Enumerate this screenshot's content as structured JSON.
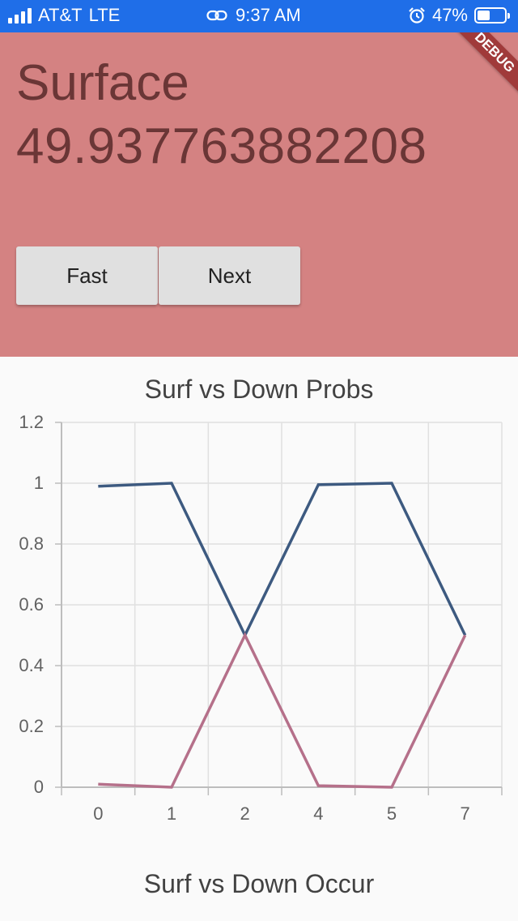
{
  "status_bar": {
    "carrier": "AT&T",
    "network": "LTE",
    "time": "9:37 AM",
    "battery_percent": "47%",
    "battery_level": 0.47,
    "icons": [
      "signal-icon",
      "link-icon",
      "alarm-icon",
      "battery-icon"
    ]
  },
  "header": {
    "title": "Surface",
    "value": "49.937763882208",
    "background_color": "#d48282",
    "text_color": "#6a3636"
  },
  "buttons": {
    "fast_label": "Fast",
    "next_label": "Next"
  },
  "debug_banner": "DEBUG",
  "charts": {
    "first_title": "Surf vs Down Probs",
    "second_title": "Surf vs Down Occur"
  },
  "chart_data": {
    "type": "line",
    "title": "Surf vs Down Probs",
    "categories": [
      "0",
      "1",
      "2",
      "4",
      "5",
      "7"
    ],
    "ylim": [
      0,
      1.2
    ],
    "y_ticks": [
      "0",
      "0.2",
      "0.4",
      "0.6",
      "0.8",
      "1",
      "1.2"
    ],
    "grid": true,
    "series": [
      {
        "color": "#3d5a80",
        "values": [
          0.99,
          1.0,
          0.5,
          0.995,
          1.0,
          0.5
        ]
      },
      {
        "color": "#b5708a",
        "values": [
          0.01,
          0.0,
          0.5,
          0.005,
          0.0,
          0.5
        ]
      }
    ]
  }
}
